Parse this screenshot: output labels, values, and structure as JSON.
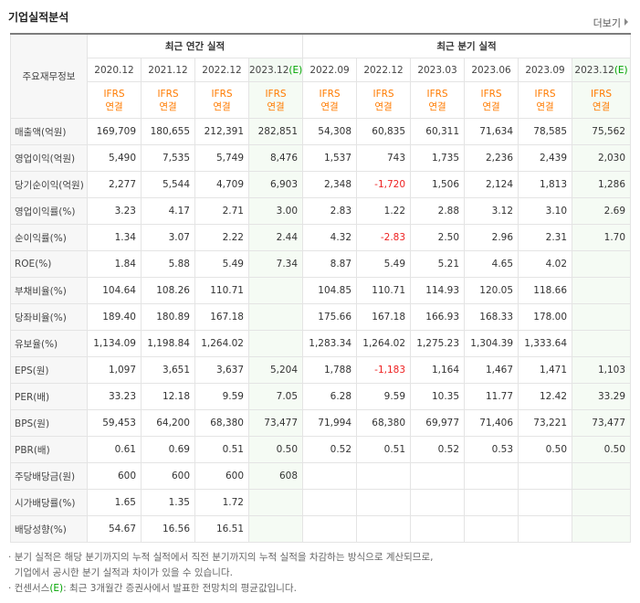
{
  "title": "기업실적분석",
  "more_link": "더보기",
  "header": {
    "row_label": "주요재무정보",
    "annual_group": "최근 연간 실적",
    "quarter_group": "최근 분기 실적",
    "annual_periods": [
      "2020.12",
      "2021.12",
      "2022.12"
    ],
    "annual_estimate": {
      "base": "2023.12",
      "suffix": "(E)"
    },
    "quarter_periods": [
      "2022.09",
      "2022.12",
      "2023.03",
      "2023.06",
      "2023.09"
    ],
    "quarter_estimate": {
      "base": "2023.12",
      "suffix": "(E)"
    },
    "ifrs_line1": "IFRS",
    "ifrs_line2": "연결"
  },
  "rows": [
    {
      "label": "매출액(억원)",
      "values": [
        "169,709",
        "180,655",
        "212,391",
        "282,851",
        "54,308",
        "60,835",
        "60,311",
        "71,634",
        "78,585",
        "75,562"
      ]
    },
    {
      "label": "영업이익(억원)",
      "values": [
        "5,490",
        "7,535",
        "5,749",
        "8,476",
        "1,537",
        "743",
        "1,735",
        "2,236",
        "2,439",
        "2,030"
      ]
    },
    {
      "label": "당기순이익(억원)",
      "values": [
        "2,277",
        "5,544",
        "4,709",
        "6,903",
        "2,348",
        "-1,720",
        "1,506",
        "2,124",
        "1,813",
        "1,286"
      ]
    },
    {
      "label": "영업이익률(%)",
      "values": [
        "3.23",
        "4.17",
        "2.71",
        "3.00",
        "2.83",
        "1.22",
        "2.88",
        "3.12",
        "3.10",
        "2.69"
      ]
    },
    {
      "label": "순이익률(%)",
      "values": [
        "1.34",
        "3.07",
        "2.22",
        "2.44",
        "4.32",
        "-2.83",
        "2.50",
        "2.96",
        "2.31",
        "1.70"
      ]
    },
    {
      "label": "ROE(%)",
      "values": [
        "1.84",
        "5.88",
        "5.49",
        "7.34",
        "8.87",
        "5.49",
        "5.21",
        "4.65",
        "4.02",
        ""
      ]
    },
    {
      "label": "부채비율(%)",
      "values": [
        "104.64",
        "108.26",
        "110.71",
        "",
        "104.85",
        "110.71",
        "114.93",
        "120.05",
        "118.66",
        ""
      ]
    },
    {
      "label": "당좌비율(%)",
      "values": [
        "189.40",
        "180.89",
        "167.18",
        "",
        "175.66",
        "167.18",
        "166.93",
        "168.33",
        "178.00",
        ""
      ]
    },
    {
      "label": "유보율(%)",
      "values": [
        "1,134.09",
        "1,198.84",
        "1,264.02",
        "",
        "1,283.34",
        "1,264.02",
        "1,275.23",
        "1,304.39",
        "1,333.64",
        ""
      ]
    },
    {
      "label": "EPS(원)",
      "values": [
        "1,097",
        "3,651",
        "3,637",
        "5,204",
        "1,788",
        "-1,183",
        "1,164",
        "1,467",
        "1,471",
        "1,103"
      ]
    },
    {
      "label": "PER(배)",
      "values": [
        "33.23",
        "12.18",
        "9.59",
        "7.05",
        "6.28",
        "9.59",
        "10.35",
        "11.77",
        "12.42",
        "33.29"
      ]
    },
    {
      "label": "BPS(원)",
      "values": [
        "59,453",
        "64,200",
        "68,380",
        "73,477",
        "71,994",
        "68,380",
        "69,977",
        "71,406",
        "73,221",
        "73,477"
      ]
    },
    {
      "label": "PBR(배)",
      "values": [
        "0.61",
        "0.69",
        "0.51",
        "0.50",
        "0.52",
        "0.51",
        "0.52",
        "0.53",
        "0.50",
        "0.50"
      ]
    },
    {
      "label": "주당배당금(원)",
      "values": [
        "600",
        "600",
        "600",
        "608",
        "",
        "",
        "",
        "",
        "",
        ""
      ]
    },
    {
      "label": "시가배당률(%)",
      "values": [
        "1.65",
        "1.35",
        "1.72",
        "",
        "",
        "",
        "",
        "",
        "",
        ""
      ]
    },
    {
      "label": "배당성향(%)",
      "values": [
        "54.67",
        "16.56",
        "16.51",
        "",
        "",
        "",
        "",
        "",
        "",
        ""
      ]
    }
  ],
  "notes": {
    "line1": "분기 실적은 해당 분기까지의 누적 실적에서 직전 분기까지의 누적 실적을 차감하는 방식으로 계산되므로,",
    "line2": "기업에서 공시한 분기 실적과 차이가 있을 수 있습니다.",
    "line3_pre": "컨센서스",
    "line3_e": "(E)",
    "line3_post": ": 최근 3개월간 증권사에서 발표한 전망치의 평균값입니다."
  },
  "colors": {
    "ifrs": "#ff7b00",
    "estimate": "#00a400",
    "negative": "#e22222",
    "estimate_bg": "#f5fbf4"
  }
}
